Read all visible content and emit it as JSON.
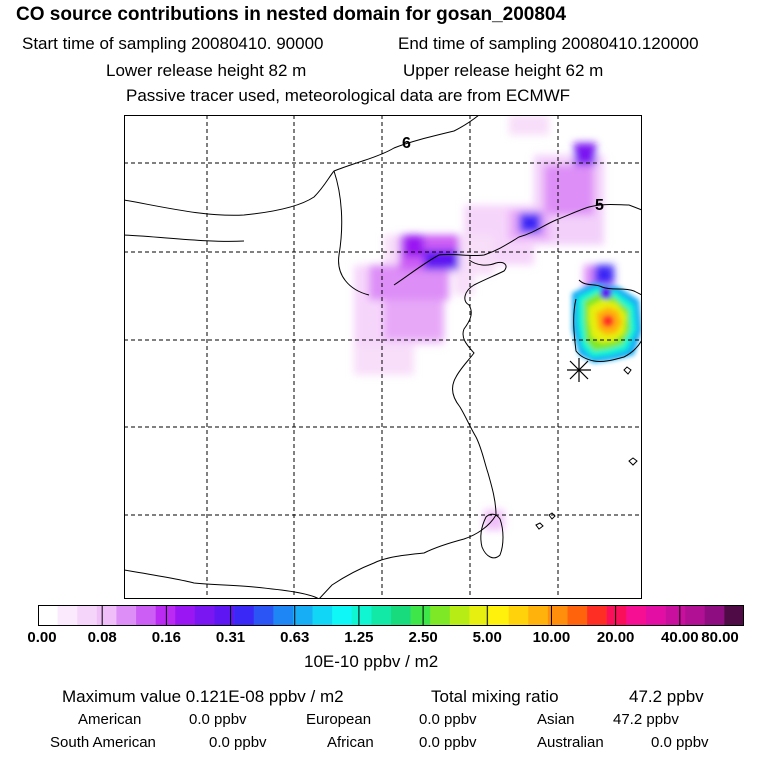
{
  "header": {
    "title": "CO  source contributions in nested domain for gosan_200804",
    "start_time": "Start time of sampling 20080410. 90000",
    "end_time": "End time of sampling 20080410.120000",
    "lower_release": "Lower release height   82 m",
    "upper_release": "Upper release height   62 m",
    "tracer_note": "Passive tracer used, meteorological data are from ECMWF"
  },
  "map": {
    "labels": {
      "label_6": "6",
      "label_5": "5"
    },
    "release_site_icon": "asterisk-marker"
  },
  "colorbar": {
    "colors": [
      "#ffffff",
      "#fbeafd",
      "#f6d5fb",
      "#f0bff9",
      "#dd8ef7",
      "#cc5df5",
      "#bb2af3",
      "#9a16f2",
      "#7a16f2",
      "#5e16f2",
      "#3a28f6",
      "#2b55f5",
      "#1f86f5",
      "#17aef5",
      "#12d6f5",
      "#0ff7f7",
      "#10f5d2",
      "#13e9a6",
      "#17db7c",
      "#3ee64a",
      "#7fe826",
      "#b8ec15",
      "#e6ef10",
      "#fff10c",
      "#ffd20c",
      "#ffb10c",
      "#ff8e0c",
      "#ff640c",
      "#ff2e24",
      "#fa105a",
      "#f70f93",
      "#e30fa5",
      "#c80f9d",
      "#b10f94",
      "#8e0d80",
      "#4e0b45"
    ],
    "tick_labels": [
      "0.00",
      "0.08",
      "0.16",
      "0.31",
      "0.63",
      "1.25",
      "2.50",
      "5.00",
      "10.00",
      "20.00",
      "40.00",
      "80.00"
    ],
    "units": "10E-10 ppbv / m2"
  },
  "stats": {
    "max_value": "Maximum value  0.121E-08 ppbv / m2",
    "total_mixing_label": "Total mixing ratio",
    "total_mixing_value": "47.2 ppbv",
    "american_label": "American",
    "american_value": "0.0 ppbv",
    "european_label": "European",
    "european_value": "0.0 ppbv",
    "asian_label": "Asian",
    "asian_value": "47.2 ppbv",
    "south_american_label": "South American",
    "south_american_value": "0.0 ppbv",
    "african_label": "African",
    "african_value": "0.0 ppbv",
    "australian_label": "Australian",
    "australian_value": "0.0 ppbv"
  }
}
